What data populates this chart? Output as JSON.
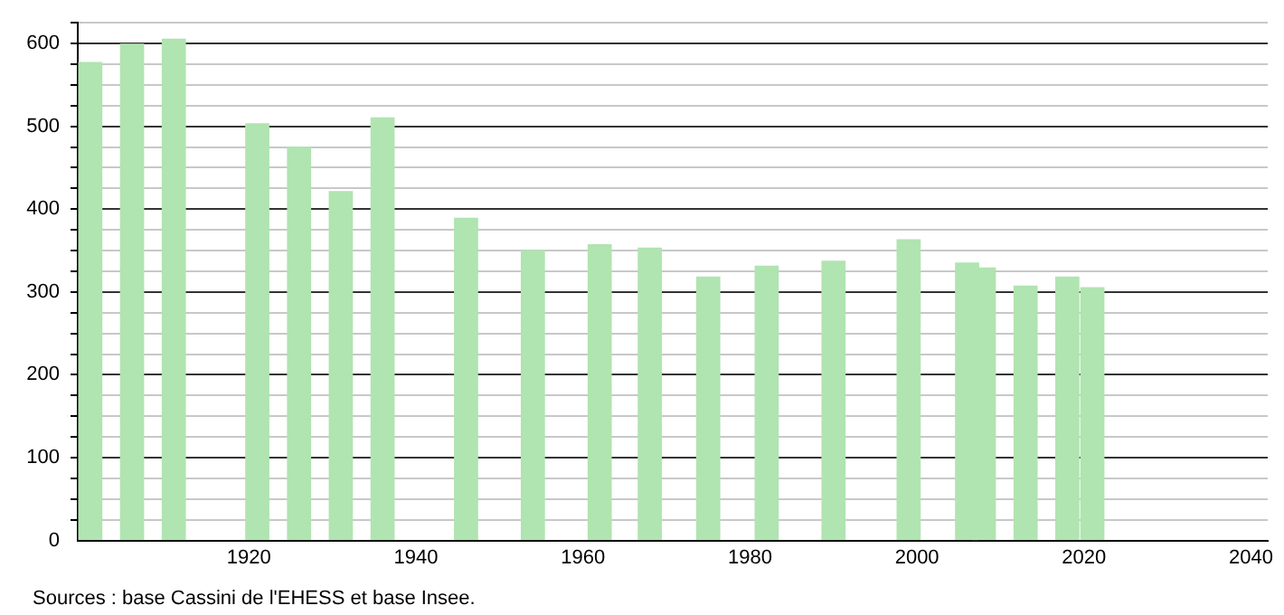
{
  "chart_data": {
    "type": "bar",
    "x": [
      1901,
      1906,
      1911,
      1921,
      1926,
      1931,
      1936,
      1946,
      1954,
      1962,
      1968,
      1975,
      1982,
      1990,
      1999,
      2006,
      2008,
      2013,
      2018,
      2021
    ],
    "values": [
      577,
      599,
      605,
      503,
      475,
      421,
      510,
      389,
      350,
      357,
      353,
      318,
      331,
      337,
      363,
      335,
      329,
      307,
      318,
      305
    ],
    "color": "#b0e4b0",
    "xlim": [
      1899.5,
      2042
    ],
    "xticks": [
      1920,
      1940,
      1960,
      1980,
      2000,
      2020,
      2040
    ],
    "ylim": [
      0,
      625
    ],
    "yticks": [
      0,
      {
        "value": 25,
        "label": null
      },
      {
        "value": 50,
        "label": null
      },
      {
        "value": 75,
        "label": null
      },
      100,
      {
        "value": 125,
        "label": null
      },
      {
        "value": 150,
        "label": null
      },
      {
        "value": 175,
        "label": null
      },
      200,
      {
        "value": 225,
        "label": null
      },
      {
        "value": 250,
        "label": null
      },
      {
        "value": 275,
        "label": null
      },
      300,
      {
        "value": 325,
        "label": null
      },
      {
        "value": 350,
        "label": null
      },
      {
        "value": 375,
        "label": null
      },
      400,
      {
        "value": 425,
        "label": null
      },
      {
        "value": 450,
        "label": null
      },
      {
        "value": 475,
        "label": null
      },
      500,
      {
        "value": 525,
        "label": null
      },
      {
        "value": 550,
        "label": null
      },
      {
        "value": 575,
        "label": null
      },
      600,
      {
        "value": 625,
        "label": null
      }
    ],
    "grid": "y",
    "annotations": [
      "Sources : base Cassini de l'EHESS et base Insee."
    ]
  }
}
